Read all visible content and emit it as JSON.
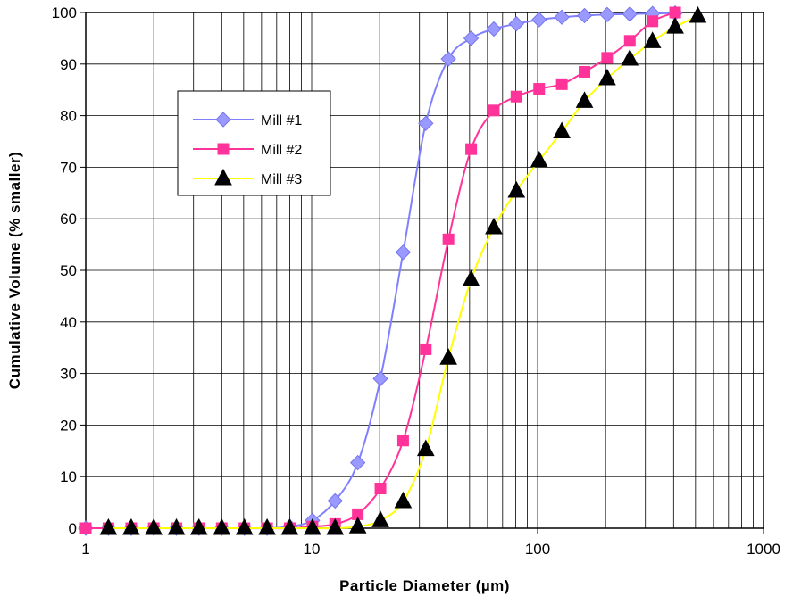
{
  "chart_data": {
    "type": "line",
    "xlabel": "Particle Diameter (µm)",
    "ylabel": "Cumulative Volume (% smaller)",
    "x_scale": "log",
    "xlim": [
      1,
      1000
    ],
    "ylim": [
      0,
      100
    ],
    "x_ticks": [
      "1",
      "10",
      "100",
      "1000"
    ],
    "y_ticks": [
      "0",
      "10",
      "20",
      "30",
      "40",
      "50",
      "60",
      "70",
      "80",
      "90",
      "100"
    ],
    "grid": true,
    "legend_position": "upper-left-inside",
    "series": [
      {
        "name": "Mill #1",
        "color": "#8080ff",
        "marker": "diamond",
        "marker_color": "#9999ff",
        "x": [
          1,
          1.26,
          1.59,
          2,
          2.52,
          3.17,
          4,
          5.04,
          6.35,
          8,
          10.08,
          12.7,
          16,
          20.16,
          25.4,
          32,
          40.3,
          50.8,
          64,
          80.6,
          101.6,
          128,
          161.3,
          203.2,
          256,
          322.5,
          406.4
        ],
        "y": [
          0,
          0,
          0,
          0,
          0,
          0,
          0,
          0,
          0,
          0.3,
          1.5,
          5.3,
          12.7,
          29,
          53.5,
          78.5,
          91,
          95,
          96.8,
          97.8,
          98.6,
          99.1,
          99.4,
          99.6,
          99.7,
          99.8,
          99.9
        ]
      },
      {
        "name": "Mill #2",
        "color": "#ff3399",
        "marker": "square",
        "marker_color": "#ff3399",
        "x": [
          1,
          1.26,
          1.59,
          2,
          2.52,
          3.17,
          4,
          5.04,
          6.35,
          8,
          10.08,
          12.7,
          16,
          20.16,
          25.4,
          32,
          40.3,
          50.8,
          64,
          80.6,
          101.6,
          128,
          161.3,
          203.2,
          256,
          322.5,
          406.4
        ],
        "y": [
          0,
          0,
          0,
          0,
          0,
          0,
          0,
          0,
          0,
          0,
          0.3,
          0.8,
          2.7,
          7.7,
          17,
          34.7,
          56,
          73.5,
          81,
          83.7,
          85.2,
          86.1,
          88.5,
          91.2,
          94.5,
          98.3,
          100
        ]
      },
      {
        "name": "Mill #3",
        "color": "#ffff00",
        "marker": "triangle",
        "marker_color": "#000000",
        "x": [
          1.26,
          1.59,
          2,
          2.52,
          3.17,
          4,
          5.04,
          6.35,
          8,
          10.08,
          12.7,
          16,
          20.16,
          25.4,
          32,
          40.3,
          50.8,
          64,
          80.6,
          101.6,
          128,
          161.3,
          203.2,
          256,
          322.5,
          406.4,
          512
        ],
        "y": [
          0,
          0,
          0,
          0,
          0,
          0,
          0,
          0,
          0,
          0,
          0,
          0.3,
          1.5,
          5.2,
          15.3,
          33,
          48.2,
          58.3,
          65.4,
          71.3,
          76.9,
          82.8,
          87.2,
          91,
          94.4,
          97.2,
          99.3
        ]
      }
    ]
  }
}
